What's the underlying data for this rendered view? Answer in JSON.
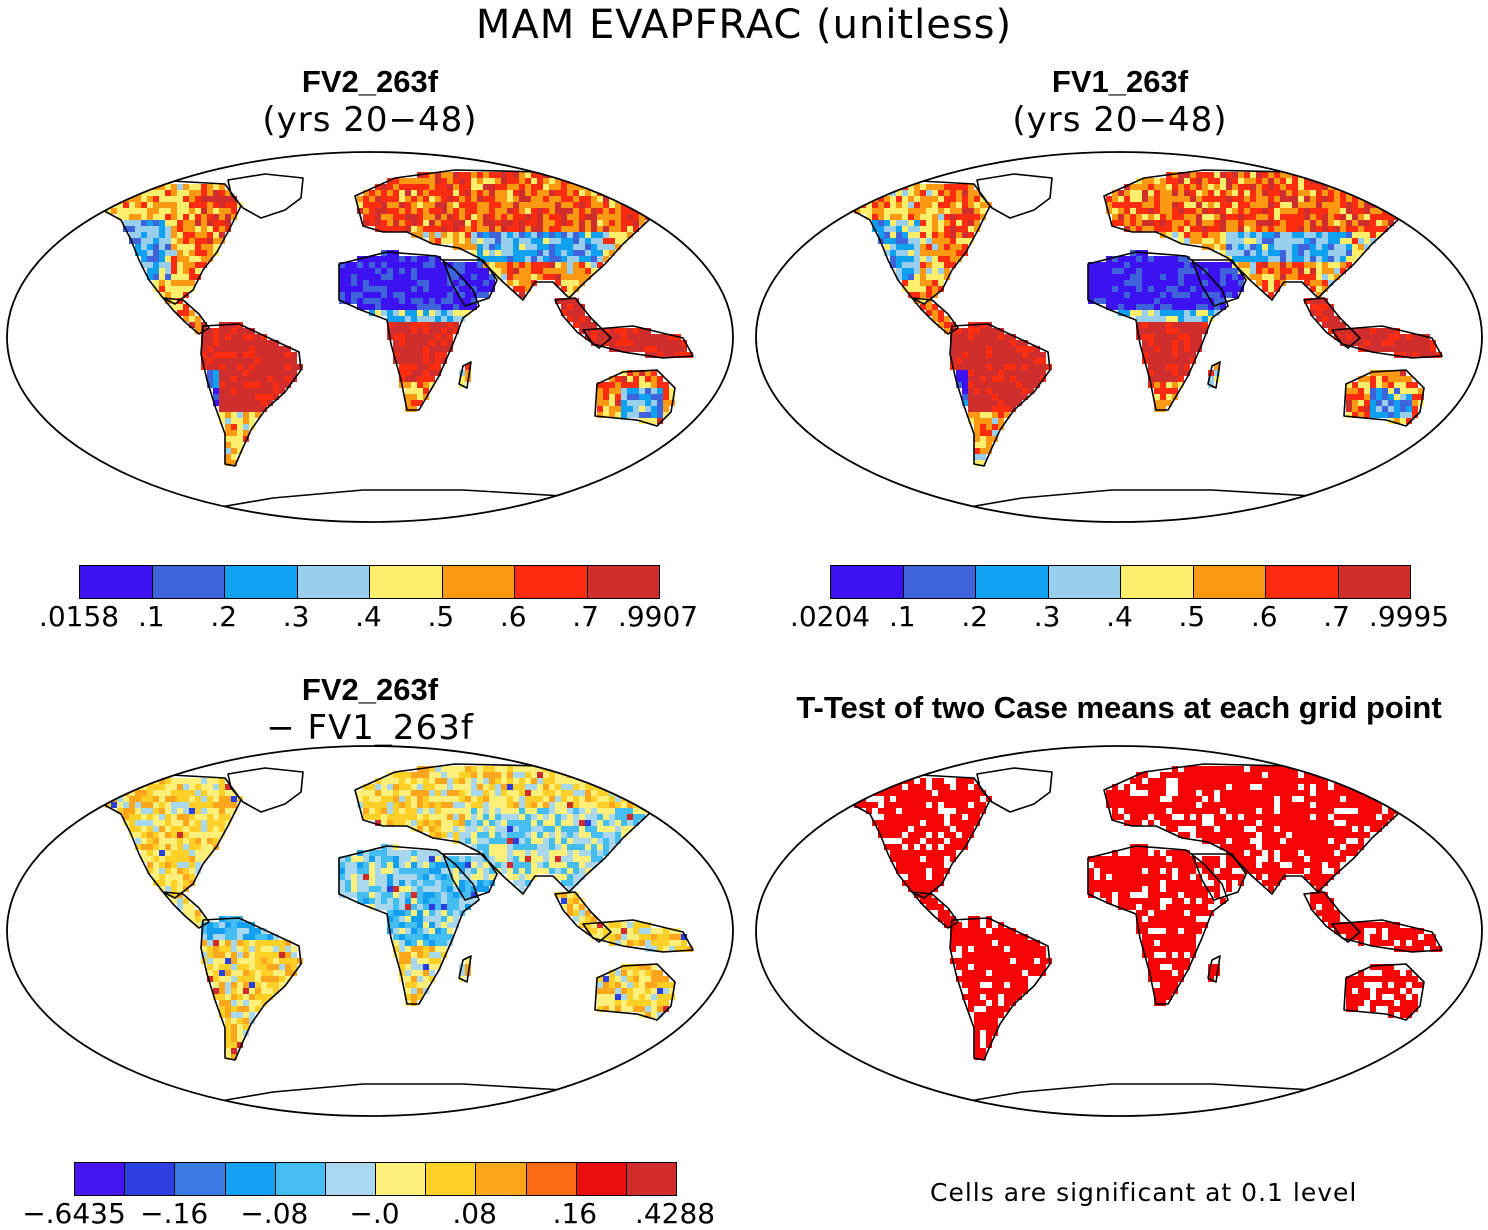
{
  "title": "MAM EVAPFRAC (unitless)",
  "panels": {
    "p1": {
      "title": "FV2_263f",
      "subtitle": "(yrs 20−48)"
    },
    "p2": {
      "title": "FV1_263f",
      "subtitle": "(yrs 20−48)"
    },
    "p3": {
      "title": "FV2_263f",
      "subtitle": "− FV1_263f"
    },
    "p4": {
      "title": "T-Test of two Case means at each grid point",
      "note": "Cells are significant at 0.1 level"
    }
  },
  "colorbars": {
    "cb1": {
      "labels": [
        ".0158",
        ".1",
        ".2",
        ".3",
        ".4",
        ".5",
        ".6",
        ".7",
        ".9907"
      ],
      "colors": [
        "#3d12f0",
        "#3f63da",
        "#0fa1f0",
        "#98cfec",
        "#fdef6b",
        "#fb9a12",
        "#fb2c0f",
        "#d02d2d"
      ]
    },
    "cb2": {
      "labels": [
        ".0204",
        ".1",
        ".2",
        ".3",
        ".4",
        ".5",
        ".6",
        ".7",
        ".9995"
      ],
      "colors": [
        "#3d12f0",
        "#3f63da",
        "#0fa1f0",
        "#98cfec",
        "#fdef6b",
        "#fb9a12",
        "#fb2c0f",
        "#d02d2d"
      ]
    },
    "cb3": {
      "labels": [
        "−.6435",
        "−.16",
        "−.08",
        "−.0",
        ".08",
        ".16",
        ".4288"
      ],
      "colors": [
        "#4515f2",
        "#2c3fe0",
        "#3a7ae2",
        "#159ff0",
        "#44bdf1",
        "#a9d8ee",
        "#fdf07a",
        "#fdd028",
        "#fca61b",
        "#fb6a14",
        "#ea0f0c",
        "#d02c2c"
      ]
    }
  },
  "map_colors": {
    "ocean": "#ffffff",
    "ttest_significant": "#f50505",
    "coast": "#000000"
  }
}
